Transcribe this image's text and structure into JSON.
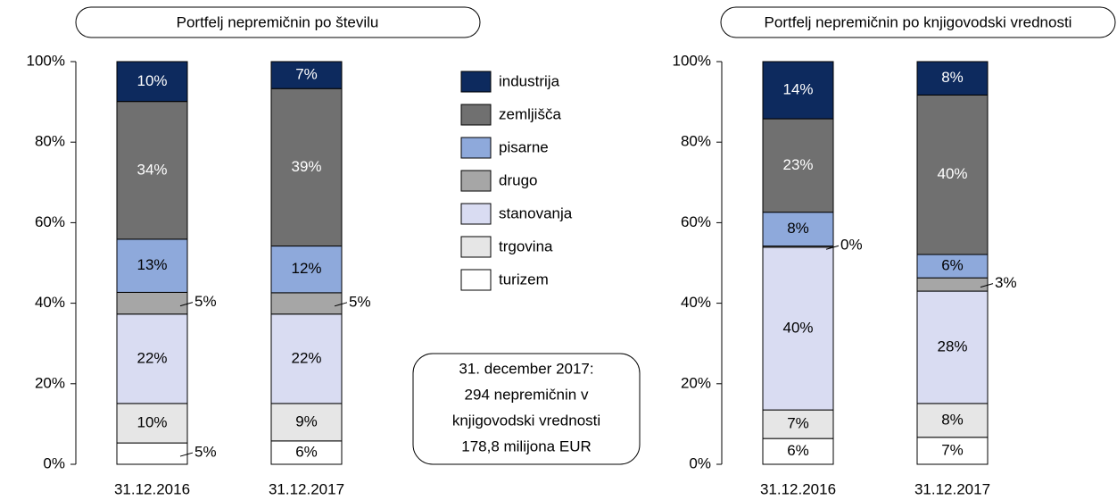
{
  "chart_data": [
    {
      "type": "bar",
      "stacked": true,
      "title": "Portfelj nepremičnin po številu",
      "categories": [
        "31.12.2016",
        "31.12.2017"
      ],
      "ylim": [
        0,
        100
      ],
      "yticks": [
        {
          "value": 0,
          "label": "0%"
        },
        {
          "value": 20,
          "label": "20%"
        },
        {
          "value": 40,
          "label": "40%"
        },
        {
          "value": 60,
          "label": "60%"
        },
        {
          "value": 80,
          "label": "80%"
        },
        {
          "value": 100,
          "label": "100%"
        }
      ],
      "series": [
        {
          "name": "turizem",
          "color": "#ffffff",
          "values": [
            5.3,
            5.8
          ],
          "value_labels": [
            "5%",
            "6%"
          ]
        },
        {
          "name": "trgovina",
          "color": "#e6e6e6",
          "values": [
            9.8,
            9.3
          ],
          "value_labels": [
            "10%",
            "9%"
          ]
        },
        {
          "name": "stanovanja",
          "color": "#d9dcf2",
          "values": [
            22.2,
            22.2
          ],
          "value_labels": [
            "22%",
            "22%"
          ]
        },
        {
          "name": "drugo",
          "color": "#a6a6a6",
          "values": [
            5.4,
            5.3
          ],
          "value_labels": [
            "5%",
            "5%"
          ]
        },
        {
          "name": "pisarne",
          "color": "#8ea9db",
          "values": [
            13.2,
            11.6
          ],
          "value_labels": [
            "13%",
            "12%"
          ]
        },
        {
          "name": "zemljišča",
          "color": "#707070",
          "values": [
            34.2,
            39.1
          ],
          "value_labels": [
            "34%",
            "39%"
          ]
        },
        {
          "name": "industrija",
          "color": "#0d2a5e",
          "values": [
            9.9,
            6.7
          ],
          "value_labels": [
            "10%",
            "7%"
          ]
        }
      ],
      "annotation": [
        "31. december 2017:",
        "294 nepremičnin v",
        "knjigovodski vrednosti",
        "178,8 milijona EUR"
      ]
    },
    {
      "type": "bar",
      "stacked": true,
      "title": "Portfelj nepremičnin po knjigovodski vrednosti",
      "categories": [
        "31.12.2016",
        "31.12.2017"
      ],
      "ylim": [
        0,
        100
      ],
      "yticks": [
        {
          "value": 0,
          "label": "0%"
        },
        {
          "value": 20,
          "label": "20%"
        },
        {
          "value": 40,
          "label": "40%"
        },
        {
          "value": 60,
          "label": "60%"
        },
        {
          "value": 80,
          "label": "80%"
        },
        {
          "value": 100,
          "label": "100%"
        }
      ],
      "series": [
        {
          "color": "#ffffff",
          "values": [
            6.4,
            6.7
          ],
          "value_labels": [
            "6%",
            "7%"
          ]
        },
        {
          "color": "#e6e6e6",
          "values": [
            7.1,
            8.4
          ],
          "value_labels": [
            "7%",
            "8%"
          ]
        },
        {
          "color": "#d9dcf2",
          "values": [
            40.4,
            27.9
          ],
          "value_labels": [
            "40%",
            "28%"
          ]
        },
        {
          "color": "#a6a6a6",
          "values": [
            0.3,
            3.3
          ],
          "value_labels": [
            "0%",
            "3%"
          ]
        },
        {
          "color": "#8ea9db",
          "values": [
            8.4,
            5.8
          ],
          "value_labels": [
            "8%",
            "6%"
          ]
        },
        {
          "color": "#707070",
          "values": [
            23.2,
            39.6
          ],
          "value_labels": [
            "23%",
            "40%"
          ]
        },
        {
          "color": "#0d2a5e",
          "values": [
            14.2,
            8.3
          ],
          "value_labels": [
            "14%",
            "8%"
          ]
        }
      ]
    }
  ]
}
